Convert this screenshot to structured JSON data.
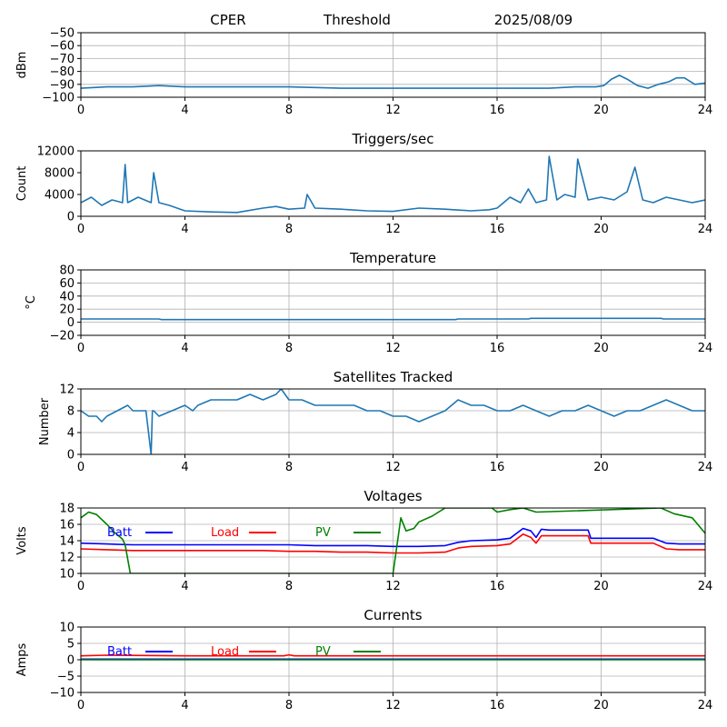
{
  "header": {
    "site": "CPER",
    "mode": "Threshold",
    "date": "2025/08/09"
  },
  "chart_data": [
    {
      "type": "line",
      "title": "",
      "ylabel": "dBm",
      "xlim": [
        0,
        24
      ],
      "ylim": [
        -100,
        -50
      ],
      "xticks": [
        0,
        4,
        8,
        12,
        16,
        20,
        24
      ],
      "yticks": [
        -100,
        -90,
        -80,
        -70,
        -60,
        -50
      ],
      "grid": true,
      "series": [
        {
          "color": "#1f77b4",
          "x": [
            0,
            1,
            2,
            3,
            4,
            6,
            8,
            10,
            12,
            13,
            14,
            16,
            17,
            18,
            19,
            19.8,
            20.1,
            20.4,
            20.7,
            21.0,
            21.4,
            21.8,
            22.2,
            22.6,
            22.9,
            23.2,
            23.6,
            24
          ],
          "y": [
            -93,
            -92,
            -92,
            -91,
            -92,
            -92,
            -92,
            -93,
            -93,
            -93,
            -93,
            -93,
            -93,
            -93,
            -92,
            -92,
            -91,
            -86,
            -83,
            -86,
            -91,
            -93,
            -90,
            -88,
            -85,
            -85,
            -90,
            -89
          ]
        }
      ]
    },
    {
      "type": "line",
      "title": "Triggers/sec",
      "ylabel": "Count",
      "xlim": [
        0,
        24
      ],
      "ylim": [
        0,
        12000
      ],
      "xticks": [
        0,
        4,
        8,
        12,
        16,
        20,
        24
      ],
      "yticks": [
        0,
        4000,
        8000,
        12000
      ],
      "grid": false,
      "series": [
        {
          "color": "#1f77b4",
          "x": [
            0,
            0.4,
            0.8,
            1.2,
            1.6,
            1.7,
            1.8,
            2.2,
            2.7,
            2.8,
            3.0,
            3.4,
            4,
            5,
            6,
            7,
            7.5,
            8,
            8.6,
            8.7,
            9,
            10,
            11,
            12,
            13,
            14,
            15,
            15.7,
            16,
            16.5,
            16.9,
            17.2,
            17.5,
            17.9,
            18.0,
            18.3,
            18.6,
            19.0,
            19.1,
            19.5,
            20,
            20.5,
            21.0,
            21.3,
            21.6,
            22,
            22.5,
            23,
            23.5,
            24
          ],
          "y": [
            2500,
            3500,
            2000,
            3000,
            2500,
            9500,
            2500,
            3500,
            2500,
            8000,
            2500,
            2000,
            1000,
            800,
            700,
            1500,
            1800,
            1300,
            1500,
            4000,
            1500,
            1300,
            1000,
            900,
            1500,
            1300,
            1000,
            1200,
            1500,
            3500,
            2500,
            5000,
            2500,
            3000,
            11000,
            3000,
            4000,
            3500,
            10500,
            3000,
            3500,
            3000,
            4500,
            9000,
            3000,
            2500,
            3500,
            3000,
            2500,
            3000
          ]
        }
      ]
    },
    {
      "type": "line",
      "title": "Temperature",
      "ylabel": "°C",
      "xlim": [
        0,
        24
      ],
      "ylim": [
        -20,
        80
      ],
      "xticks": [
        0,
        4,
        8,
        12,
        16,
        20,
        24
      ],
      "yticks": [
        -20,
        0,
        20,
        40,
        60,
        80
      ],
      "grid": true,
      "series": [
        {
          "color": "#1f77b4",
          "x": [
            0,
            3,
            3.1,
            14.4,
            14.5,
            17.2,
            17.3,
            22.3,
            22.4,
            24
          ],
          "y": [
            5,
            5,
            4,
            4,
            5,
            5,
            6,
            6,
            5,
            5
          ]
        }
      ]
    },
    {
      "type": "line",
      "title": "Satellites Tracked",
      "ylabel": "Number",
      "xlim": [
        0,
        24
      ],
      "ylim": [
        0,
        12
      ],
      "xticks": [
        0,
        4,
        8,
        12,
        16,
        20,
        24
      ],
      "yticks": [
        0,
        4,
        8,
        12
      ],
      "grid": true,
      "series": [
        {
          "color": "#1f77b4",
          "x": [
            0,
            0.3,
            0.6,
            0.8,
            1.0,
            1.4,
            1.8,
            2.0,
            2.5,
            2.7,
            2.75,
            2.8,
            3.0,
            3.5,
            4.0,
            4.3,
            4.5,
            5.0,
            5.5,
            6.0,
            6.5,
            7.0,
            7.5,
            7.7,
            8.0,
            8.5,
            9.0,
            9.5,
            10.0,
            10.5,
            11.0,
            11.5,
            12.0,
            12.5,
            13.0,
            13.5,
            14.0,
            14.5,
            15.0,
            15.5,
            16.0,
            16.5,
            17.0,
            17.5,
            18.0,
            18.5,
            19.0,
            19.5,
            20.0,
            20.5,
            21.0,
            21.5,
            22.0,
            22.5,
            23.0,
            23.5,
            24
          ],
          "y": [
            8,
            7,
            7,
            6,
            7,
            8,
            9,
            8,
            8,
            0,
            8,
            8,
            7,
            8,
            9,
            8,
            9,
            10,
            10,
            10,
            11,
            10,
            11,
            12,
            10,
            10,
            9,
            9,
            9,
            9,
            8,
            8,
            7,
            7,
            6,
            7,
            8,
            10,
            9,
            9,
            8,
            8,
            9,
            8,
            7,
            8,
            8,
            9,
            8,
            7,
            8,
            8,
            9,
            10,
            9,
            8,
            8
          ]
        }
      ]
    },
    {
      "type": "line",
      "title": "Voltages",
      "ylabel": "Volts",
      "xlim": [
        0,
        24
      ],
      "ylim": [
        10,
        18
      ],
      "xticks": [
        0,
        4,
        8,
        12,
        16,
        20,
        24
      ],
      "yticks": [
        10,
        12,
        14,
        16,
        18
      ],
      "grid": true,
      "legend": "upper-left",
      "series": [
        {
          "name": "Batt",
          "color": "#0000ff",
          "x": [
            0,
            1,
            2,
            3,
            4,
            5,
            6,
            7,
            8,
            9,
            10,
            11,
            12,
            13,
            14,
            14.5,
            15,
            16,
            16.5,
            17,
            17.3,
            17.5,
            17.7,
            18,
            18.5,
            19,
            19.5,
            19.6,
            20,
            21,
            22,
            22.5,
            23,
            24
          ],
          "y": [
            13.7,
            13.6,
            13.5,
            13.5,
            13.5,
            13.5,
            13.5,
            13.5,
            13.5,
            13.4,
            13.4,
            13.4,
            13.3,
            13.3,
            13.4,
            13.8,
            14.0,
            14.1,
            14.3,
            15.5,
            15.2,
            14.4,
            15.4,
            15.3,
            15.3,
            15.3,
            15.3,
            14.3,
            14.3,
            14.3,
            14.3,
            13.7,
            13.6,
            13.6
          ]
        },
        {
          "name": "Load",
          "color": "#ff0000",
          "x": [
            0,
            1,
            2,
            3,
            4,
            5,
            6,
            7,
            8,
            9,
            10,
            11,
            12,
            13,
            14,
            14.5,
            15,
            16,
            16.5,
            17,
            17.3,
            17.5,
            17.7,
            18,
            18.5,
            19,
            19.5,
            19.6,
            20,
            21,
            22,
            22.5,
            23,
            24
          ],
          "y": [
            13.0,
            12.9,
            12.8,
            12.8,
            12.8,
            12.8,
            12.8,
            12.8,
            12.7,
            12.7,
            12.6,
            12.6,
            12.5,
            12.5,
            12.6,
            13.1,
            13.3,
            13.4,
            13.6,
            14.8,
            14.4,
            13.7,
            14.6,
            14.6,
            14.6,
            14.6,
            14.6,
            13.7,
            13.7,
            13.7,
            13.7,
            13.0,
            12.9,
            12.9
          ]
        },
        {
          "name": "PV",
          "color": "#008000",
          "x": [
            0,
            0.3,
            0.6,
            1.0,
            1.3,
            1.6,
            1.7,
            1.9,
            12.0,
            12.3,
            12.5,
            12.8,
            13.0,
            13.5,
            14.0,
            15.8,
            16.0,
            16.5,
            17.0,
            17.5,
            22.3,
            22.8,
            23.5,
            24
          ],
          "y": [
            16.8,
            17.5,
            17.2,
            16.0,
            15.0,
            14.2,
            13.5,
            10.0,
            10.0,
            16.8,
            15.2,
            15.5,
            16.3,
            17.0,
            18.0,
            18.0,
            17.5,
            17.8,
            18.0,
            17.5,
            18.0,
            17.3,
            16.8,
            14.9
          ]
        }
      ]
    },
    {
      "type": "line",
      "title": "Currents",
      "ylabel": "Amps",
      "xlim": [
        0,
        24
      ],
      "ylim": [
        -10,
        10
      ],
      "xticks": [
        0,
        4,
        8,
        12,
        16,
        20,
        24
      ],
      "yticks": [
        -10,
        -5,
        0,
        5,
        10
      ],
      "grid": true,
      "legend": "upper-left",
      "series": [
        {
          "name": "Batt",
          "color": "#0000ff",
          "x": [
            0,
            24
          ],
          "y": [
            0.2,
            0.2
          ]
        },
        {
          "name": "Load",
          "color": "#ff0000",
          "x": [
            0,
            1,
            4,
            7.8,
            8.0,
            8.2,
            12,
            16,
            20,
            24
          ],
          "y": [
            1.2,
            1.4,
            1.2,
            1.2,
            1.5,
            1.2,
            1.2,
            1.2,
            1.2,
            1.2
          ]
        },
        {
          "name": "PV",
          "color": "#008000",
          "x": [
            0,
            24
          ],
          "y": [
            0.0,
            0.0
          ]
        }
      ]
    }
  ]
}
